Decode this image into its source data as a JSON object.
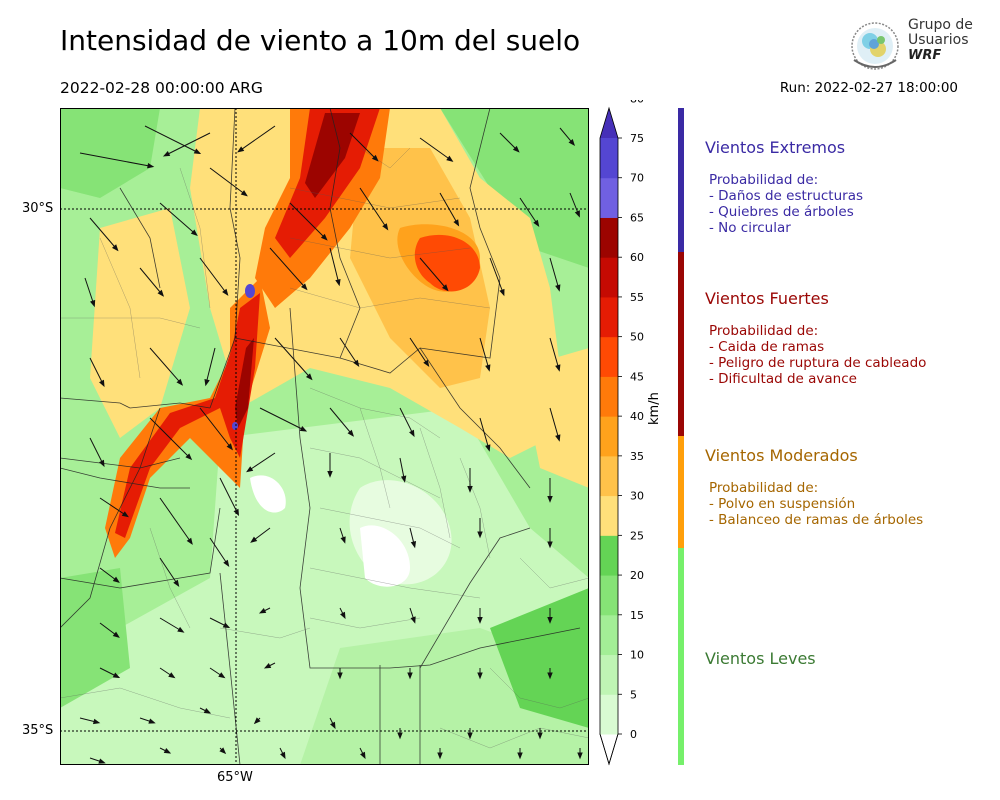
{
  "header": {
    "title": "Intensidad de viento a 10m del suelo",
    "valid_time": "2022-02-28 00:00:00 ARG",
    "run_time": "Run: 2022-02-27 18:00:00"
  },
  "logo": {
    "line1": "Grupo de",
    "line2": "Usuarios",
    "line3": "WRF"
  },
  "map": {
    "lat_labels": [
      "30°S",
      "35°S"
    ],
    "lon_labels": [
      "65°W"
    ]
  },
  "colorbar": {
    "unit": "km/h",
    "ticks": [
      "0",
      "5",
      "10",
      "15",
      "20",
      "25",
      "30",
      "35",
      "40",
      "45",
      "50",
      "55",
      "60",
      "65",
      "70",
      "75",
      "80"
    ],
    "colors": [
      "#ffffff",
      "#d9fbd2",
      "#bff5b4",
      "#a3ee96",
      "#86e376",
      "#64d455",
      "#ffe07a",
      "#ffc24a",
      "#ffa21c",
      "#ff7a0a",
      "#ff4a04",
      "#e51c04",
      "#c50a02",
      "#9c0400",
      "#7060e2",
      "#5446d2",
      "#4630b8"
    ]
  },
  "categories": [
    {
      "title": "Vientos Extremos",
      "lines": [
        "Probabilidad de:",
        "- Daños de estructuras",
        "- Quiebres de árboles",
        "- No circular"
      ],
      "color": "#3a2aa4",
      "bar": "#3a2aa4"
    },
    {
      "title": "Vientos Fuertes",
      "lines": [
        "Probabilidad de:",
        "- Caida de ramas",
        "- Peligro de ruptura de cableado",
        "- Dificultad de avance"
      ],
      "color": "#9a0604",
      "bar": "#9a0604"
    },
    {
      "title": "Vientos Moderados",
      "lines": [
        "Probabilidad de:",
        "- Polvo en suspensión",
        "- Balanceo de ramas de árboles"
      ],
      "color": "#a56600",
      "bar": "#ff9f0a"
    },
    {
      "title": "Vientos Leves",
      "lines": [],
      "color": "#3b7a33",
      "bar": "#76f06b"
    }
  ]
}
